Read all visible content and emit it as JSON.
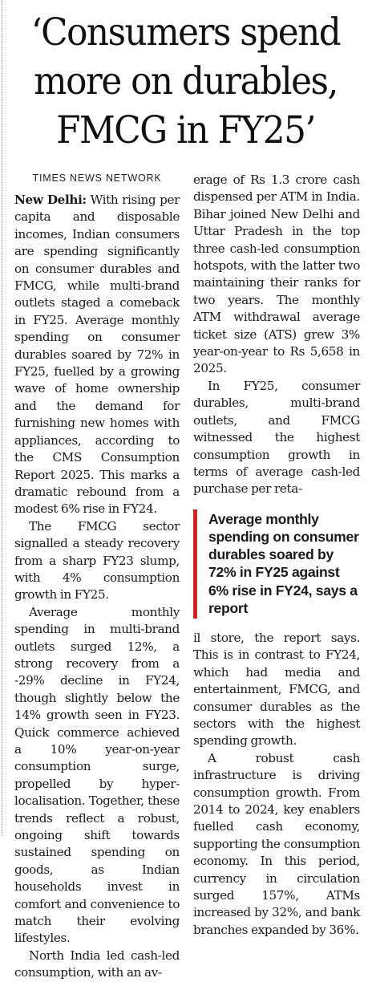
{
  "headline": "‘Consumers spend more on durables, FMCG in FY25’",
  "byline": "TIMES NEWS NETWORK",
  "dateline": "New Delhi:",
  "left_column": {
    "lead": "With rising per capita and disposable incomes, Indian consumers are spending significantly on consumer durables and FMCG, while multi-brand outlets staged a comeback in FY25. Average monthly spending on consumer durables soared by 72% in FY25, fuelled by a growing wave of home ownership and the demand for furnishing new homes with appliances, according to the CMS Consumption Report 2025. This marks a dramatic rebound from a modest 6% rise in FY24.",
    "p2": "The FMCG sector signalled a steady recovery from a sharp FY23 slump, with 4% consumption growth in FY25.",
    "p3": "Average monthly spending in multi-brand outlets surged 12%, a strong recovery from a -29% decline in FY24, though slightly below the 14% growth seen in FY23. Quick commerce achieved a 10% year-on-year consumption surge, propelled by hyper-localisation. Together, these trends reflect a robust, ongoing shift towards sustained spending on goods, as Indian households invest in comfort and convenience to match their evolving lifestyles.",
    "p4": "North India led cash-led consumption, with an av-"
  },
  "right_column": {
    "p4_cont": "erage of Rs 1.3 crore cash dispensed per ATM in India. Bihar joined New Delhi and Uttar Pradesh in the top three cash-led consumption hotspots, with the latter two maintaining their ranks for two years. The monthly ATM withdrawal average ticket size (ATS) grew 3% year-on-year to Rs 5,658 in 2025.",
    "p5": "In FY25, consumer durables, multi-brand outlets, and FMCG witnessed the highest consumption growth in terms of average cash-led purchase per reta-",
    "pull_quote": "Average monthly spending on consumer durables soared by 72% in FY25 against 6% rise in FY24, says a report",
    "p5_cont": "il store, the report says. This is in contrast to FY24, which had media and entertainment, FMCG, and consumer durables as the sectors with the highest spending growth.",
    "p6": "A robust cash infrastructure is driving consumption growth. From 2014 to 2024, key enablers fuelled cash economy, supporting the consumption economy. In this period, currency in circulation surged 157%, ATMs increased by 32%, and bank branches expanded by 36%."
  },
  "colors": {
    "accent_rule": "#d32020",
    "text": "#1a1a1a"
  }
}
